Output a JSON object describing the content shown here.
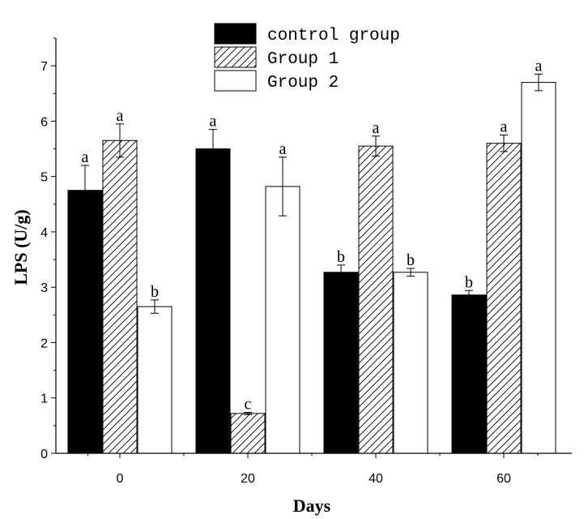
{
  "chart_data": {
    "type": "bar",
    "xlabel": "Days",
    "ylabel": "LPS (U/g)",
    "categories": [
      "0",
      "20",
      "40",
      "60"
    ],
    "ylim": [
      0,
      7.5
    ],
    "yticks": [
      "0",
      "1",
      "2",
      "3",
      "4",
      "5",
      "6",
      "7"
    ],
    "grid": false,
    "legend_position": "top-center",
    "series": [
      {
        "name": "control group",
        "fill": "solid",
        "color": "#000000",
        "values": [
          4.75,
          5.5,
          3.27,
          2.86
        ],
        "errors": [
          0.45,
          0.35,
          0.13,
          0.08
        ],
        "labels": [
          "a",
          "a",
          "b",
          "b"
        ]
      },
      {
        "name": "Group 1",
        "fill": "hatched",
        "color": "#000000",
        "values": [
          5.65,
          0.72,
          5.55,
          5.6
        ],
        "errors": [
          0.3,
          0.02,
          0.18,
          0.15
        ],
        "labels": [
          "a",
          "c",
          "a",
          "a"
        ]
      },
      {
        "name": "Group 2",
        "fill": "open",
        "color": "#ffffff",
        "values": [
          2.65,
          4.82,
          3.27,
          6.7
        ],
        "errors": [
          0.12,
          0.53,
          0.07,
          0.15
        ],
        "labels": [
          "b",
          "a",
          "b",
          "a"
        ]
      }
    ]
  }
}
